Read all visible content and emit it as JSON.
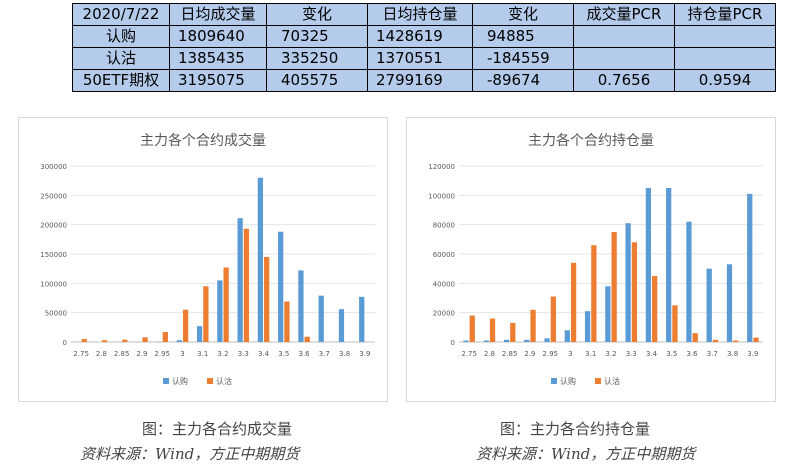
{
  "table": {
    "header": [
      "2020/7/22",
      "日均成交量",
      "变化",
      "日均持仓量",
      "变化",
      "成交量PCR",
      "持仓量PCR"
    ],
    "rows": [
      [
        "认购",
        "1809640",
        "70325",
        "1428619",
        "94885",
        "",
        ""
      ],
      [
        "认沽",
        "1385435",
        "335250",
        "1370551",
        "-184559",
        "",
        ""
      ],
      [
        "50ETF期权",
        "3195075",
        "405575",
        "2799169",
        "-89674",
        "0.7656",
        "0.9594"
      ]
    ]
  },
  "colors": {
    "call": "#5b9bd5",
    "put": "#ed7d31",
    "table_bg": "#b4cbeb"
  },
  "chart_data": [
    {
      "type": "bar",
      "title": "主力各个合约成交量",
      "categories": [
        "2.75",
        "2.8",
        "2.85",
        "2.9",
        "2.95",
        "3",
        "3.1",
        "3.2",
        "3.3",
        "3.4",
        "3.5",
        "3.6",
        "3.7",
        "3.8",
        "3.9"
      ],
      "series": [
        {
          "name": "认购",
          "values": [
            0,
            0,
            0,
            0,
            500,
            3000,
            27000,
            105000,
            211000,
            280000,
            188000,
            122000,
            79000,
            56000,
            77000
          ]
        },
        {
          "name": "认沽",
          "values": [
            5000,
            3000,
            4000,
            8000,
            17000,
            55000,
            95000,
            127000,
            193000,
            145000,
            69000,
            9000,
            0,
            0,
            0
          ]
        }
      ],
      "ylim": [
        0,
        300000
      ],
      "yticks": [
        "0",
        "50000",
        "100000",
        "150000",
        "200000",
        "250000",
        "300000"
      ],
      "legend": "bottom",
      "grid": true
    },
    {
      "type": "bar",
      "title": "主力各个合约持仓量",
      "categories": [
        "2.75",
        "2.8",
        "2.85",
        "2.9",
        "2.95",
        "3",
        "3.1",
        "3.2",
        "3.3",
        "3.4",
        "3.5",
        "3.6",
        "3.7",
        "3.8",
        "3.9"
      ],
      "series": [
        {
          "name": "认购",
          "values": [
            1000,
            1000,
            1500,
            1500,
            2500,
            8000,
            21000,
            38000,
            81000,
            105000,
            105000,
            82000,
            50000,
            53000,
            101000
          ]
        },
        {
          "name": "认沽",
          "values": [
            18000,
            16000,
            13000,
            22000,
            31000,
            54000,
            66000,
            75000,
            68000,
            45000,
            25000,
            6000,
            1500,
            1000,
            3000
          ]
        }
      ],
      "ylim": [
        0,
        120000
      ],
      "yticks": [
        "0",
        "20000",
        "40000",
        "60000",
        "80000",
        "100000",
        "120000"
      ],
      "legend": "bottom",
      "grid": true
    }
  ],
  "captions": {
    "left": "图：主力各合约成交量",
    "right": "图：主力各合约持仓量",
    "source_left": "资料来源：Wind，方正中期期货",
    "source_right": "资料来源：Wind，方正中期期货"
  }
}
